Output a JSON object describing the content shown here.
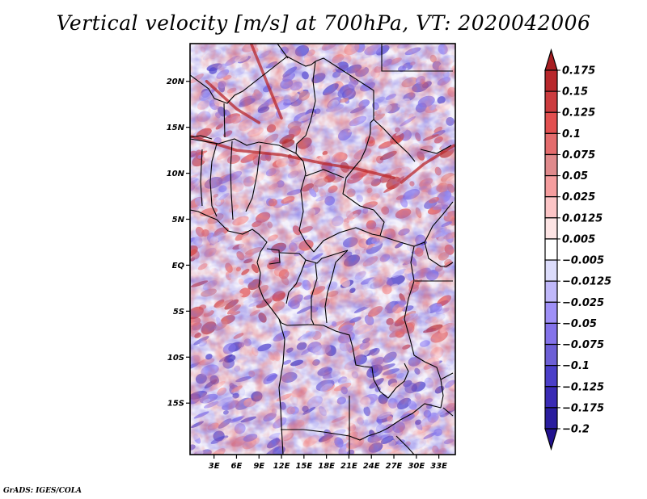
{
  "title": "Vertical velocity [m/s] at 700hPa, VT: 2020042006",
  "credit": "GrADS: IGES/COLA",
  "map": {
    "projection": "latlon",
    "lon_range": [
      -0.2,
      35.2
    ],
    "lat_range": [
      -20.6,
      24.1
    ],
    "lat_ticks": [
      {
        "value": 20,
        "label": "20N"
      },
      {
        "value": 15,
        "label": "15N"
      },
      {
        "value": 10,
        "label": "10N"
      },
      {
        "value": 5,
        "label": "5N"
      },
      {
        "value": 0,
        "label": "EQ"
      },
      {
        "value": -5,
        "label": "5S"
      },
      {
        "value": -10,
        "label": "10S"
      },
      {
        "value": -15,
        "label": "15S"
      }
    ],
    "lon_ticks": [
      {
        "value": 3,
        "label": "3E"
      },
      {
        "value": 6,
        "label": "6E"
      },
      {
        "value": 9,
        "label": "9E"
      },
      {
        "value": 12,
        "label": "12E"
      },
      {
        "value": 15,
        "label": "15E"
      },
      {
        "value": 18,
        "label": "18E"
      },
      {
        "value": 21,
        "label": "21E"
      },
      {
        "value": 24,
        "label": "24E"
      },
      {
        "value": 27,
        "label": "27E"
      },
      {
        "value": 30,
        "label": "30E"
      },
      {
        "value": 33,
        "label": "33E"
      }
    ]
  },
  "colorbar": {
    "labels": [
      "0.175",
      "0.15",
      "0.125",
      "0.1",
      "0.075",
      "0.05",
      "0.025",
      "0.0125",
      "0.005",
      "-0.005",
      "-0.0125",
      "-0.025",
      "-0.05",
      "-0.075",
      "-0.1",
      "-0.125",
      "-0.175",
      "-0.2"
    ],
    "colors": [
      "#a71e22",
      "#b8282c",
      "#cc3c3f",
      "#e25050",
      "#e46c6d",
      "#e08a8c",
      "#f59d9e",
      "#fcc5c6",
      "#fde4e4",
      "#ffffff",
      "#dcdcfb",
      "#c0b8fa",
      "#9f90f7",
      "#8473ea",
      "#6d5fd6",
      "#4b3fc9",
      "#3a2bb5",
      "#2a1d9e",
      "#22128f"
    ],
    "over_color": "#a71e22",
    "under_color": "#22128f"
  }
}
